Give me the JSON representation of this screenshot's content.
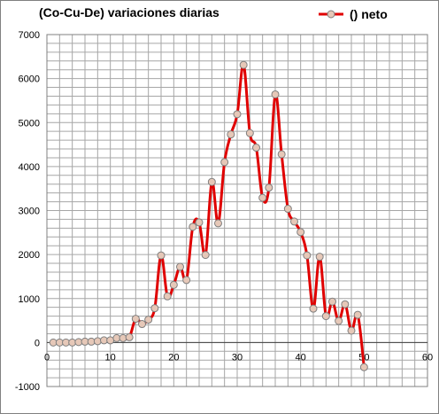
{
  "chart_data": {
    "type": "line",
    "title": "(Co-Cu-De) variaciones diarias",
    "xlabel": "",
    "ylabel": "",
    "xlim": [
      0,
      60
    ],
    "ylim": [
      -1000,
      7000
    ],
    "x_ticks": [
      0,
      10,
      20,
      30,
      40,
      50,
      60
    ],
    "y_ticks": [
      -1000,
      0,
      1000,
      2000,
      3000,
      4000,
      5000,
      6000,
      7000
    ],
    "grid": true,
    "legend_position": "top-right",
    "series": [
      {
        "name": "() neto",
        "color": "#e00000",
        "marker_fill": "#e6c8b8",
        "marker_stroke": "#7f7f7f",
        "x": [
          1,
          2,
          3,
          4,
          5,
          6,
          7,
          8,
          9,
          10,
          11,
          12,
          13,
          14,
          15,
          16,
          17,
          18,
          19,
          20,
          21,
          22,
          23,
          24,
          25,
          26,
          27,
          28,
          29,
          30,
          31,
          32,
          33,
          34,
          35,
          36,
          37,
          38,
          39,
          40,
          41,
          42,
          43,
          44,
          45,
          46,
          47,
          48,
          49,
          50
        ],
        "values": [
          0,
          0,
          0,
          0,
          10,
          20,
          20,
          30,
          50,
          50,
          100,
          100,
          120,
          540,
          420,
          520,
          780,
          1980,
          1050,
          1310,
          1720,
          1420,
          2630,
          2730,
          1990,
          3650,
          2710,
          4100,
          4730,
          5190,
          6310,
          4760,
          4430,
          3290,
          3520,
          5640,
          4280,
          3040,
          2750,
          2510,
          1980,
          770,
          1950,
          600,
          930,
          490,
          870,
          270,
          630,
          -560
        ]
      }
    ]
  }
}
